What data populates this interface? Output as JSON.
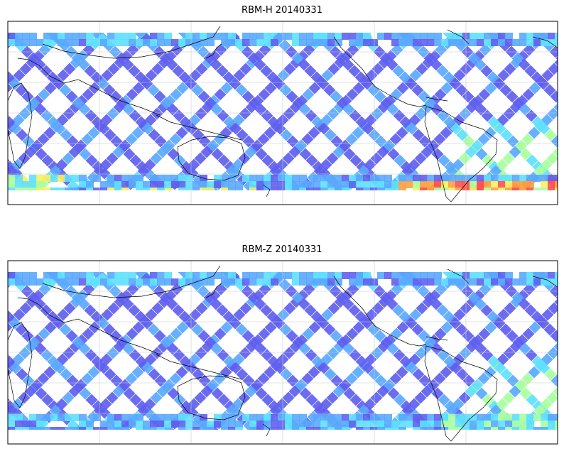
{
  "panels": [
    {
      "title": "RBM-H 20140331",
      "hot": "high"
    },
    {
      "title": "RBM-Z 20140331",
      "hot": "low"
    }
  ],
  "colors": {
    "low": "#6060f0",
    "mid": "#5aa8ff",
    "cyan": "#5ee0ff",
    "green": "#a8ffa0",
    "yellow": "#f8f060",
    "orange": "#ffa040",
    "red": "#ff5050",
    "frame": "#000000",
    "coast": "#000000",
    "grid": "#c8c8c8"
  },
  "colormap": "jet",
  "projection": "equirectangular, centered on Pacific",
  "gridlines": true
}
